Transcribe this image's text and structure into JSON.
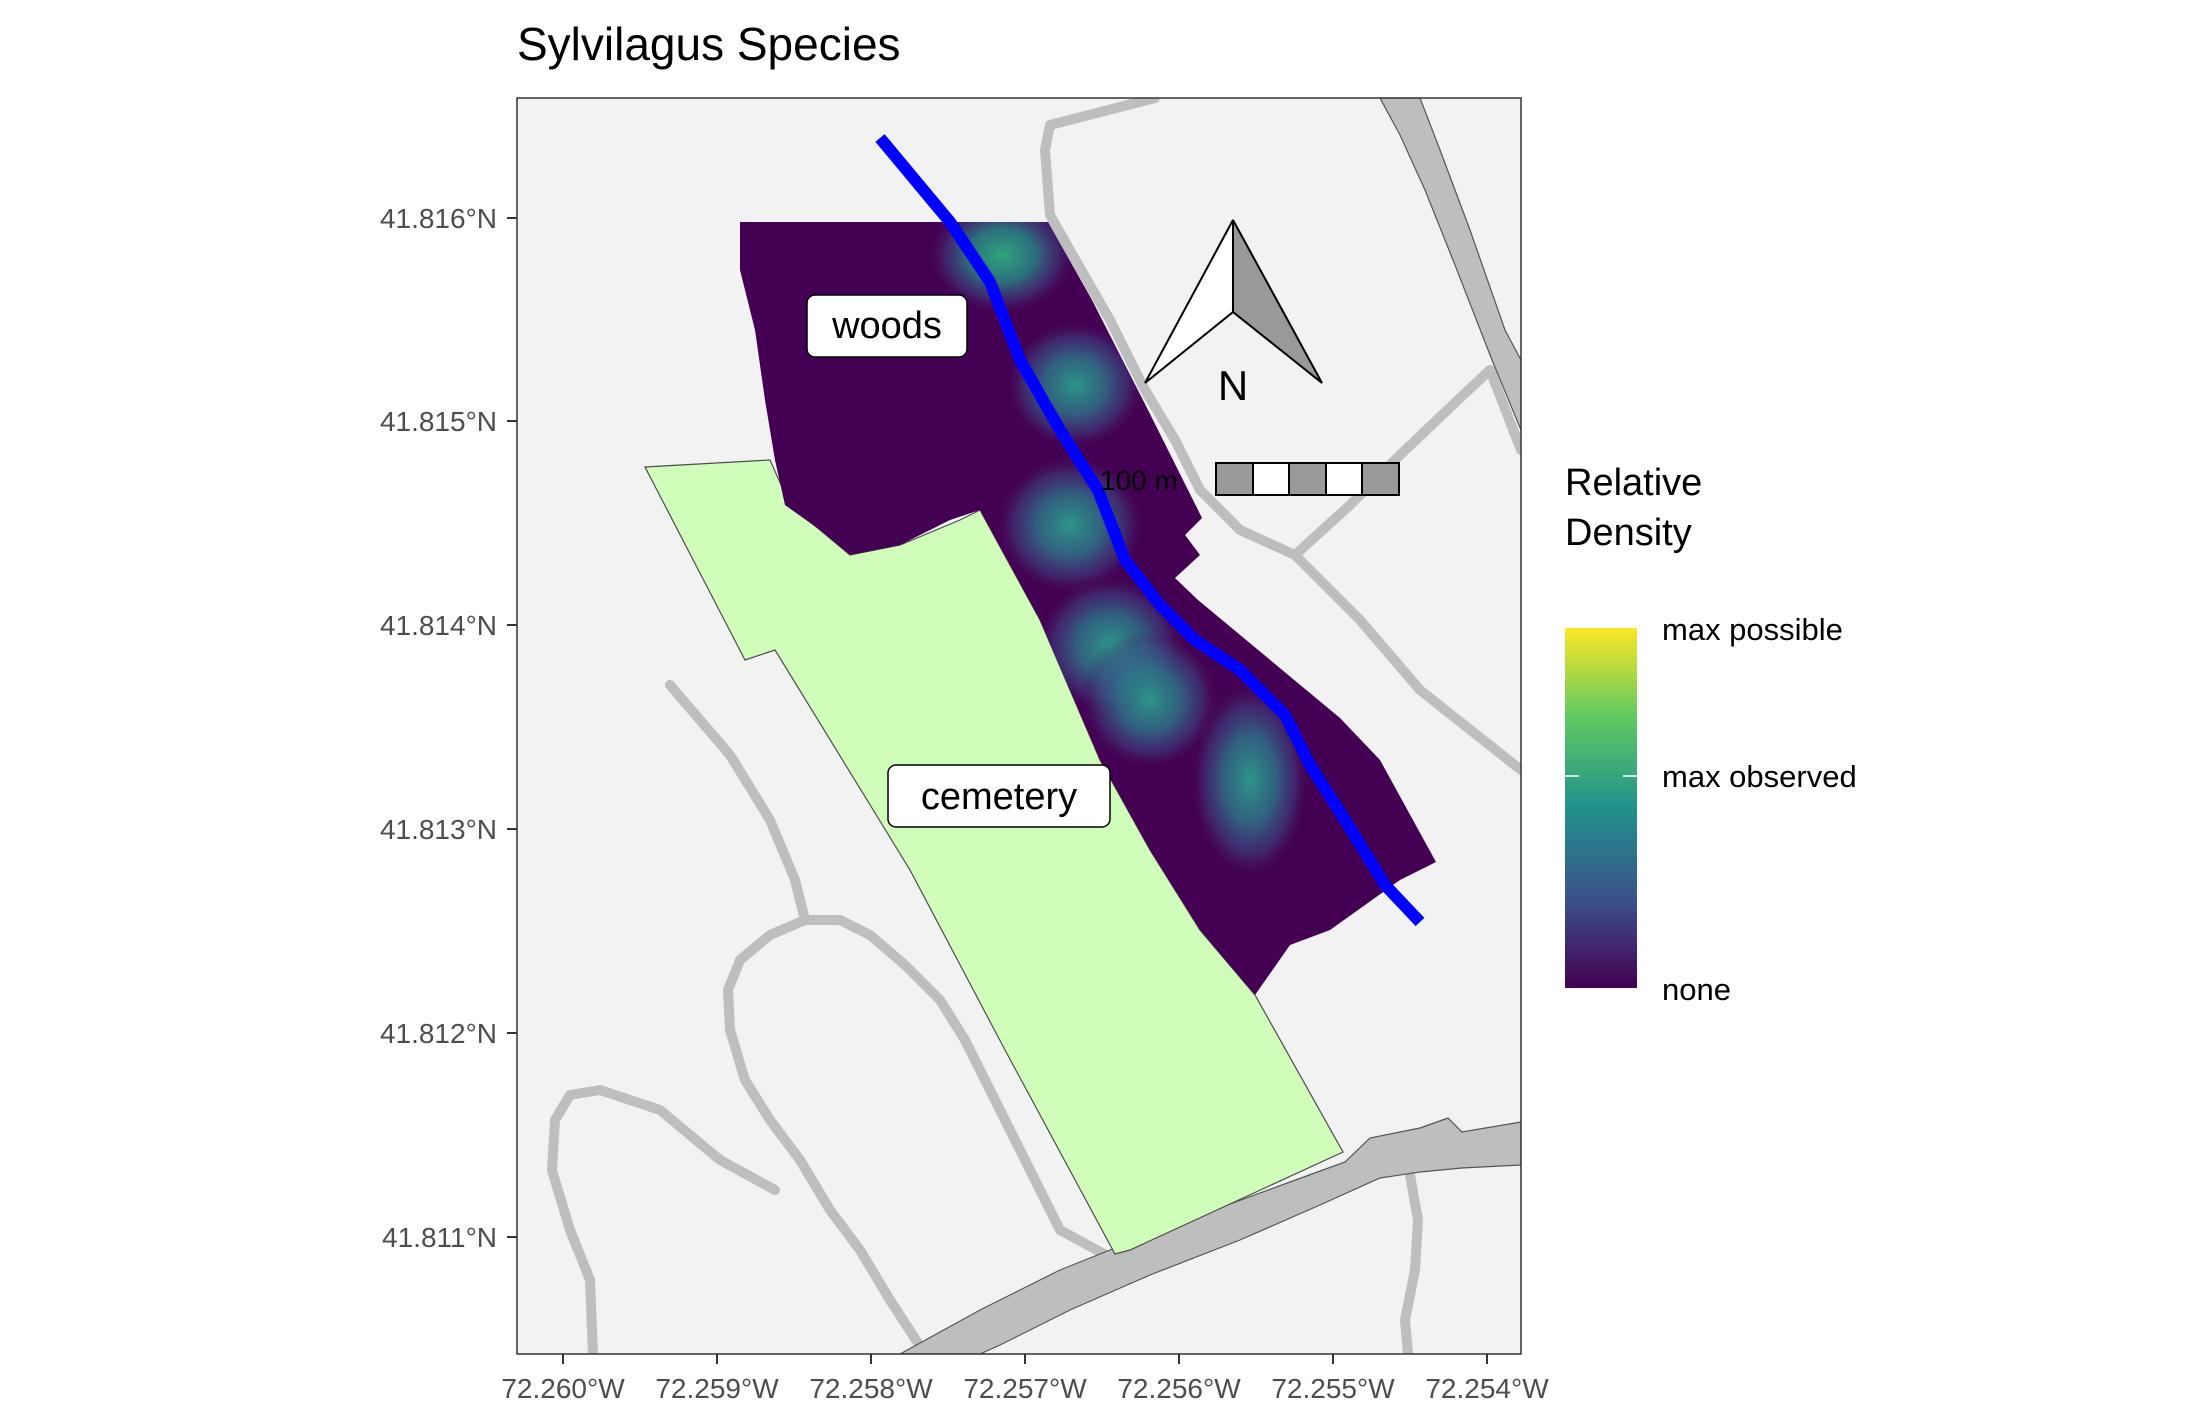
{
  "title": "Sylvilagus Species",
  "x_ticks": [
    "72.260°W",
    "72.259°W",
    "72.258°W",
    "72.257°W",
    "72.256°W",
    "72.255°W",
    "72.254°W"
  ],
  "y_ticks": [
    "41.816°N",
    "41.815°N",
    "41.814°N",
    "41.813°N",
    "41.812°N",
    "41.811°N"
  ],
  "labels": {
    "woods": "woods",
    "cemetery": "cemetery"
  },
  "north_arrow": {
    "label": "N"
  },
  "scale_bar": {
    "label": "100 m"
  },
  "legend": {
    "title_line1": "Relative",
    "title_line2": "Density",
    "max_possible": "max possible",
    "max_observed": "max observed",
    "none": "none",
    "colors": [
      "#440154",
      "#3b528b",
      "#21918c",
      "#5ec962",
      "#fde725"
    ]
  },
  "colors": {
    "panel_bg": "#f2f2f2",
    "road": "#bebebe",
    "cemetery": "#d1fdbb",
    "density_none": "#440154",
    "stream": "#0000ff"
  }
}
